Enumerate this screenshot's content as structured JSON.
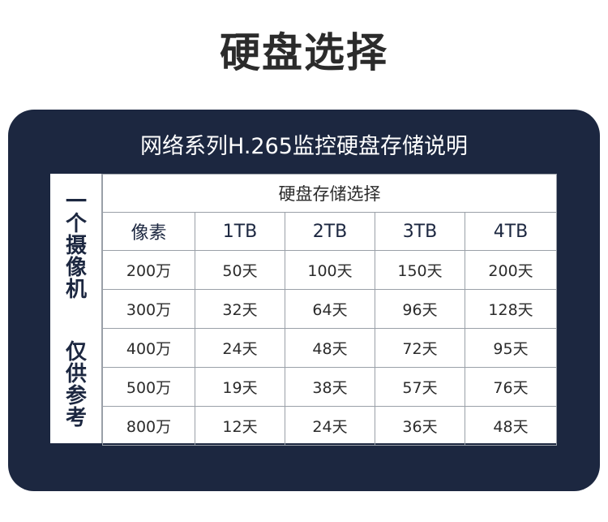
{
  "page_title": "硬盘选择",
  "panel": {
    "title": "网络系列H.265监控硬盘存储说明",
    "side_label_chars": [
      "一",
      "个",
      "摄",
      "像",
      "机",
      "仅",
      "供",
      "参",
      "考"
    ],
    "table": {
      "group_header": "硬盘存储选择",
      "columns": [
        "像素",
        "1TB",
        "2TB",
        "3TB",
        "4TB"
      ],
      "rows": [
        [
          "200万",
          "50天",
          "100天",
          "150天",
          "200天"
        ],
        [
          "300万",
          "32天",
          "64天",
          "96天",
          "128天"
        ],
        [
          "400万",
          "24天",
          "48天",
          "72天",
          "95天"
        ],
        [
          "500万",
          "19天",
          "38天",
          "57天",
          "76天"
        ],
        [
          "800万",
          "12天",
          "24天",
          "36天",
          "48天"
        ]
      ]
    }
  },
  "colors": {
    "panel_bg": "#1c2740",
    "title_text": "#2b2b2b",
    "table_border": "#9aa0a8"
  }
}
